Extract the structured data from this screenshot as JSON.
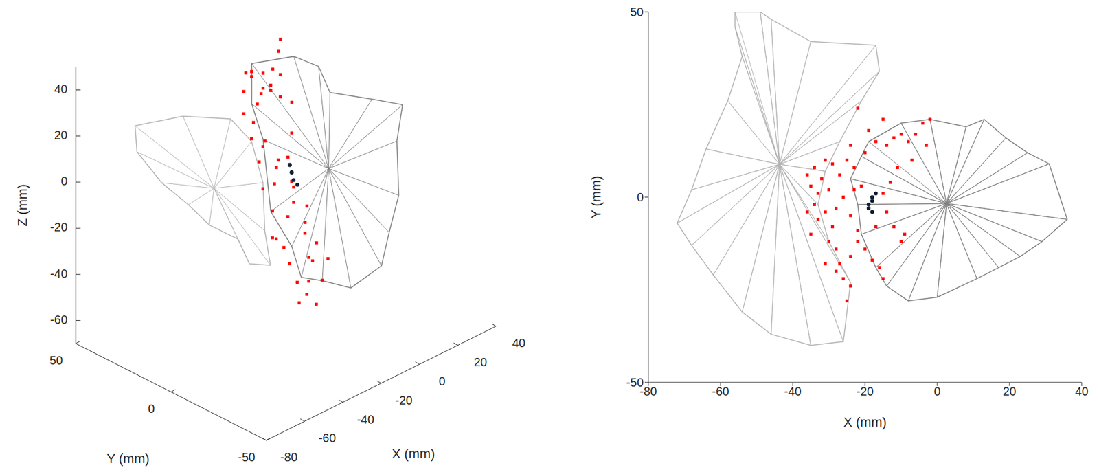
{
  "chart_data": [
    {
      "type": "scatter3d",
      "xlabel": "X (mm)",
      "ylabel": "Y (mm)",
      "zlabel": "Z (mm)",
      "xlim": [
        -80,
        40
      ],
      "xticks": [
        -80,
        -60,
        -40,
        -20,
        0,
        20,
        40
      ],
      "ylim": [
        -50,
        50
      ],
      "yticks": [
        -50,
        0,
        50
      ],
      "zlim": [
        -70,
        50
      ],
      "zticks": [
        -60,
        -40,
        -20,
        0,
        20,
        40
      ],
      "series": [
        {
          "type": "mesh",
          "color": "#b3b3b3",
          "x": [
            -59,
            -39,
            -29,
            -28,
            -32,
            -41,
            -43,
            -49,
            -50,
            -55,
            -56,
            -60,
            -60
          ],
          "y": [
            40,
            35,
            20,
            10,
            0,
            -10,
            -15,
            -10,
            -5,
            5,
            15,
            25,
            38
          ],
          "z": [
            20,
            18,
            19,
            13,
            1,
            -12,
            -24,
            -23,
            -14,
            -10,
            -5,
            2,
            10
          ]
        },
        {
          "type": "mesh",
          "color": "#7f7f7f",
          "x": [
            -15,
            -5,
            0,
            5,
            15,
            25,
            25,
            20,
            15,
            10,
            0,
            -5,
            -10,
            -12,
            -15,
            -18,
            -18
          ],
          "y": [
            23,
            11,
            3,
            2,
            -10,
            -16,
            -13,
            -19,
            -19,
            -20,
            -14,
            -4,
            2,
            5,
            13,
            14,
            20
          ],
          "z": [
            36,
            40,
            37,
            24,
            22,
            18,
            1,
            -18,
            -32,
            -44,
            -52,
            -51,
            -50,
            -37,
            -24,
            8,
            21
          ]
        },
        {
          "type": "scatter",
          "color": "#ff0000",
          "marker": "square",
          "x": [
            -36,
            -35,
            -34,
            -33,
            -34,
            -32,
            -31,
            -30,
            -33,
            -29,
            -30,
            -28,
            -27,
            -26,
            -28,
            -24,
            -22,
            -20,
            -18,
            -17,
            -19,
            -21,
            -23,
            -25,
            -27,
            -29,
            -31,
            -24,
            -20,
            -17,
            -14,
            -12,
            -10,
            -8,
            -6,
            -4,
            -2,
            -3,
            -7,
            -11,
            -13,
            -15,
            -14,
            -12,
            -10,
            -26,
            -24,
            -23,
            -35,
            -31
          ],
          "y": [
            6,
            3,
            8,
            1,
            -2,
            5,
            -4,
            2,
            -6,
            -8,
            -12,
            -14,
            -18,
            -22,
            -20,
            -16,
            -12,
            -14,
            -17,
            -8,
            -3,
            3,
            8,
            10,
            6,
            9,
            10,
            14,
            12,
            15,
            14,
            16,
            17,
            15,
            17,
            20,
            21,
            14,
            10,
            8,
            4,
            1,
            -4,
            -8,
            -12,
            0,
            -5,
            2,
            -10,
            -18
          ],
          "z": [
            30,
            20,
            38,
            10,
            0,
            25,
            -10,
            15,
            -20,
            -25,
            -30,
            -38,
            -42,
            -45,
            -35,
            -28,
            -20,
            -32,
            -40,
            -12,
            -5,
            5,
            12,
            28,
            35,
            42,
            44,
            40,
            32,
            36,
            30,
            26,
            34,
            22,
            30,
            38,
            42,
            18,
            8,
            0,
            -8,
            -15,
            -22,
            -30,
            -36,
            -2,
            -15,
            3,
            -18,
            -44
          ]
        },
        {
          "type": "scatter",
          "color": "#0b1f2e",
          "marker": "circle",
          "x": [
            -18,
            -18,
            -19,
            -18,
            -17,
            -19
          ],
          "y": [
            -1,
            0,
            -3,
            -4,
            1,
            -2
          ],
          "z": [
            0,
            3,
            -2,
            -4,
            2,
            1
          ]
        }
      ]
    },
    {
      "type": "scatter",
      "xlabel": "X (mm)",
      "ylabel": "Y (mm)",
      "xlim": [
        -80,
        40
      ],
      "xticks": [
        -80,
        -60,
        -40,
        -20,
        0,
        20,
        40
      ],
      "ylim": [
        -50,
        50
      ],
      "yticks": [
        -50,
        0,
        50
      ],
      "series": [
        {
          "type": "mesh",
          "color": "#b3b3b3",
          "x": [
            -56,
            -49,
            -46,
            -35,
            -17,
            -16,
            -21,
            -27,
            -31,
            -33,
            -30,
            -24,
            -26,
            -35,
            -46,
            -54,
            -62,
            -68,
            -72,
            -68,
            -64,
            -58,
            -54,
            -56
          ],
          "y": [
            50,
            50,
            48,
            42,
            41,
            34,
            26,
            15,
            7,
            -2,
            -12,
            -23,
            -39,
            -40,
            -37,
            -31,
            -21,
            -13,
            -7,
            2,
            13,
            26,
            38,
            46
          ]
        },
        {
          "type": "mesh",
          "color": "#7f7f7f",
          "x": [
            -19,
            -10,
            -2,
            8,
            13,
            19,
            25,
            31,
            36,
            29,
            23,
            17,
            11,
            0,
            -8,
            -14,
            -17,
            -21,
            -22,
            -24,
            -21
          ],
          "y": [
            15,
            20,
            21,
            19,
            21,
            16,
            12,
            9,
            -6,
            -12,
            -16,
            -19,
            -22,
            -27,
            -28,
            -24,
            -19,
            -10,
            -2,
            5,
            11
          ]
        },
        {
          "type": "scatter",
          "color": "#ff0000",
          "marker": "square",
          "x": [
            -36,
            -35,
            -34,
            -33,
            -34,
            -32,
            -31,
            -30,
            -33,
            -29,
            -30,
            -28,
            -27,
            -26,
            -28,
            -24,
            -22,
            -20,
            -18,
            -17,
            -19,
            -21,
            -23,
            -25,
            -27,
            -29,
            -31,
            -24,
            -20,
            -17,
            -14,
            -12,
            -10,
            -8,
            -6,
            -4,
            -2,
            -3,
            -7,
            -11,
            -13,
            -15,
            -14,
            -12,
            -10,
            -26,
            -24,
            -23,
            -35,
            -31,
            -25,
            -16,
            -15,
            -9,
            -22,
            -15,
            -19,
            -28,
            -22,
            -36,
            -24
          ],
          "y": [
            6,
            3,
            8,
            1,
            -2,
            5,
            -4,
            2,
            -6,
            -8,
            -12,
            -14,
            -18,
            -22,
            -20,
            -16,
            -12,
            -14,
            -17,
            -8,
            -3,
            3,
            8,
            10,
            6,
            9,
            10,
            14,
            12,
            15,
            14,
            16,
            17,
            15,
            17,
            20,
            21,
            14,
            10,
            8,
            4,
            1,
            -4,
            -8,
            -12,
            0,
            -5,
            2,
            -10,
            -18,
            -28,
            -19,
            -22,
            -10,
            24,
            21,
            18,
            -3,
            -9,
            -4,
            -24
          ]
        },
        {
          "type": "scatter",
          "color": "#0b1f2e",
          "marker": "circle",
          "x": [
            -18,
            -18,
            -19,
            -18,
            -17,
            -19
          ],
          "y": [
            -1,
            0,
            -3,
            -4,
            1,
            -2
          ]
        }
      ]
    }
  ]
}
